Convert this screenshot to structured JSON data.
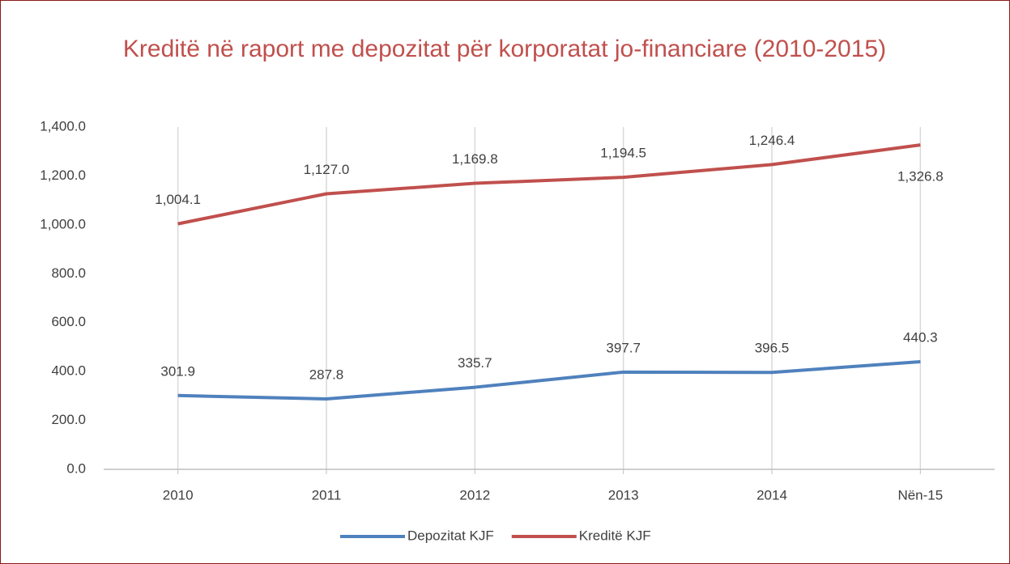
{
  "chart_data": {
    "type": "line",
    "title": "Kreditë në raport me depozitat për korporatat jo-financiare (2010-2015)",
    "categories": [
      "2010",
      "2011",
      "2012",
      "2013",
      "2014",
      "Nën-15"
    ],
    "series": [
      {
        "name": "Depozitat KJF",
        "color": "#4f81bd",
        "values": [
          301.9,
          287.8,
          335.7,
          397.7,
          396.5,
          440.3
        ]
      },
      {
        "name": "Kreditë KJF",
        "color": "#c0504d",
        "values": [
          1004.1,
          1127.0,
          1169.8,
          1194.5,
          1246.4,
          1326.8
        ],
        "value_labels": [
          "1,004.1",
          "1,127.0",
          "1,169.8",
          "1,194.5",
          "1,246.4",
          "1,326.8"
        ]
      }
    ],
    "ylim": [
      0,
      1400
    ],
    "yticks": [
      {
        "value": 0,
        "label": "0.0"
      },
      {
        "value": 200,
        "label": "200.0"
      },
      {
        "value": 400,
        "label": "400.0"
      },
      {
        "value": 600,
        "label": "600.0"
      },
      {
        "value": 800,
        "label": "800.0"
      },
      {
        "value": 1000,
        "label": "1,000.0"
      },
      {
        "value": 1200,
        "label": "1,200.0"
      },
      {
        "value": 1400,
        "label": "1,400.0"
      }
    ],
    "grid": true,
    "legend": "bottom"
  }
}
